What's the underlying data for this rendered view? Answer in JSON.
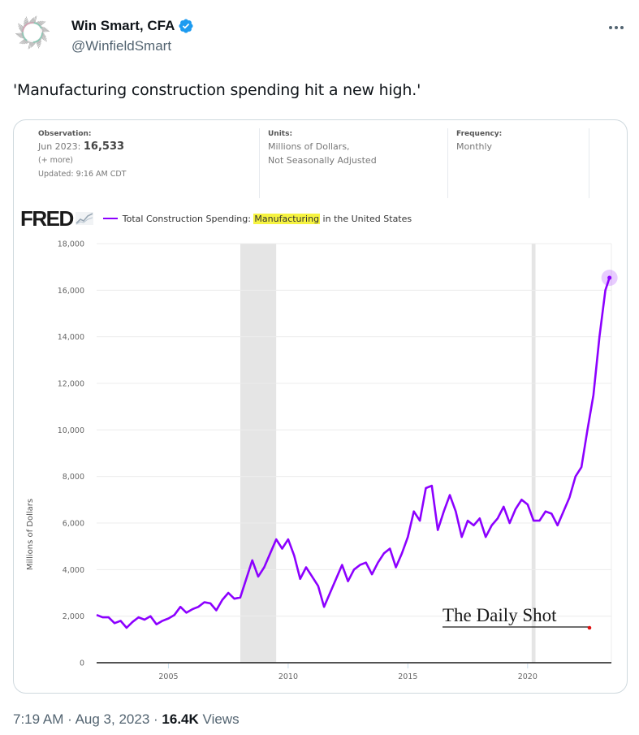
{
  "tweet": {
    "author_name": "Win Smart, CFA",
    "author_handle": "@WinfieldSmart",
    "verified": true,
    "text": "'Manufacturing construction spending hit a new high.'",
    "time": "7:19 AM",
    "date": "Aug 3, 2023",
    "views_count": "16.4K",
    "views_label": "Views",
    "separator": "·"
  },
  "fred": {
    "observation_label": "Observation:",
    "observation_date": "Jun 2023:",
    "observation_value": "16,533",
    "more_link": "(+ more)",
    "updated": "Updated: 9:16 AM CDT",
    "units_label": "Units:",
    "units_line1": "Millions of Dollars,",
    "units_line2": "Not Seasonally Adjusted",
    "frequency_label": "Frequency:",
    "frequency_value": "Monthly",
    "logo_text": "FRED",
    "series_prefix": "Total Construction Spending: ",
    "series_highlight": "Manufacturing",
    "series_suffix": " in the United States",
    "watermark": "The Daily Shot"
  },
  "colors": {
    "series": "#8c00ff",
    "recession": "#e5e5e5",
    "highlight": "#f6f341",
    "verified": "#1d9bf0"
  },
  "chart_data": {
    "type": "line",
    "title": "Total Construction Spending: Manufacturing in the United States",
    "xlabel": "",
    "ylabel": "Millions of Dollars",
    "xlim": [
      2002.0,
      2023.5
    ],
    "ylim": [
      0,
      18000
    ],
    "yticks": [
      0,
      2000,
      4000,
      6000,
      8000,
      10000,
      12000,
      14000,
      16000,
      18000
    ],
    "ytick_labels": [
      "0",
      "2,000",
      "4,000",
      "6,000",
      "8,000",
      "10,000",
      "12,000",
      "14,000",
      "16,000",
      "18,000"
    ],
    "xticks": [
      2005,
      2010,
      2015,
      2020
    ],
    "xtick_labels": [
      "2005",
      "2010",
      "2015",
      "2020"
    ],
    "grid": true,
    "legend": "top-left",
    "recessions": [
      [
        2008.0,
        2009.5
      ],
      [
        2020.17,
        2020.33
      ]
    ],
    "series": [
      {
        "name": "Total Construction Spending: Manufacturing in the United States",
        "x": [
          2002.0,
          2002.25,
          2002.5,
          2002.75,
          2003.0,
          2003.25,
          2003.5,
          2003.75,
          2004.0,
          2004.25,
          2004.5,
          2004.75,
          2005.0,
          2005.25,
          2005.5,
          2005.75,
          2006.0,
          2006.25,
          2006.5,
          2006.75,
          2007.0,
          2007.25,
          2007.5,
          2007.75,
          2008.0,
          2008.25,
          2008.5,
          2008.75,
          2009.0,
          2009.25,
          2009.5,
          2009.75,
          2010.0,
          2010.25,
          2010.5,
          2010.75,
          2011.0,
          2011.25,
          2011.5,
          2011.75,
          2012.0,
          2012.25,
          2012.5,
          2012.75,
          2013.0,
          2013.25,
          2013.5,
          2013.75,
          2014.0,
          2014.25,
          2014.5,
          2014.75,
          2015.0,
          2015.25,
          2015.5,
          2015.75,
          2016.0,
          2016.25,
          2016.5,
          2016.75,
          2017.0,
          2017.25,
          2017.5,
          2017.75,
          2018.0,
          2018.25,
          2018.5,
          2018.75,
          2019.0,
          2019.25,
          2019.5,
          2019.75,
          2020.0,
          2020.25,
          2020.5,
          2020.75,
          2021.0,
          2021.25,
          2021.5,
          2021.75,
          2022.0,
          2022.25,
          2022.5,
          2022.75,
          2023.0,
          2023.25,
          2023.42
        ],
        "y": [
          2050,
          1950,
          1950,
          1700,
          1800,
          1500,
          1750,
          1950,
          1850,
          2000,
          1650,
          1800,
          1900,
          2050,
          2400,
          2150,
          2300,
          2400,
          2600,
          2550,
          2250,
          2700,
          3000,
          2750,
          2800,
          3600,
          4400,
          3700,
          4100,
          4700,
          5300,
          4900,
          5300,
          4600,
          3600,
          4100,
          3700,
          3300,
          2400,
          3000,
          3600,
          4200,
          3500,
          4000,
          4200,
          4300,
          3800,
          4300,
          4700,
          4900,
          4100,
          4700,
          5400,
          6500,
          6100,
          7500,
          7600,
          5700,
          6500,
          7200,
          6500,
          5400,
          6100,
          5900,
          6200,
          5400,
          5900,
          6200,
          6700,
          6000,
          6600,
          7000,
          6800,
          6100,
          6100,
          6500,
          6400,
          5900,
          6500,
          7100,
          8000,
          8400,
          10000,
          11500,
          14000,
          16000,
          16533
        ]
      }
    ]
  }
}
